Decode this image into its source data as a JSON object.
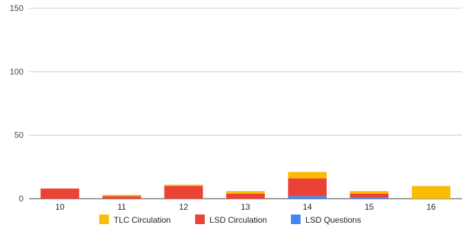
{
  "chart_data": {
    "type": "bar",
    "stacked": true,
    "categories": [
      "10",
      "11",
      "12",
      "13",
      "14",
      "15",
      "16"
    ],
    "series": [
      {
        "name": "LSD Questions",
        "color": "#4285f4",
        "values": [
          0,
          0,
          0,
          0,
          2,
          1,
          0
        ]
      },
      {
        "name": "LSD Circulation",
        "color": "#ea4335",
        "values": [
          8,
          2,
          10,
          4,
          14,
          3,
          0
        ]
      },
      {
        "name": "TLC Circulation",
        "color": "#fbbc04",
        "values": [
          0,
          1,
          1,
          2,
          5,
          2,
          10
        ]
      }
    ],
    "legend_order": [
      "TLC Circulation",
      "LSD Circulation",
      "LSD Questions"
    ],
    "ylim": [
      0,
      150
    ],
    "yticks": [
      0,
      50,
      100,
      150
    ],
    "grid": true,
    "legend_position": "bottom",
    "title": "",
    "xlabel": "",
    "ylabel": ""
  }
}
